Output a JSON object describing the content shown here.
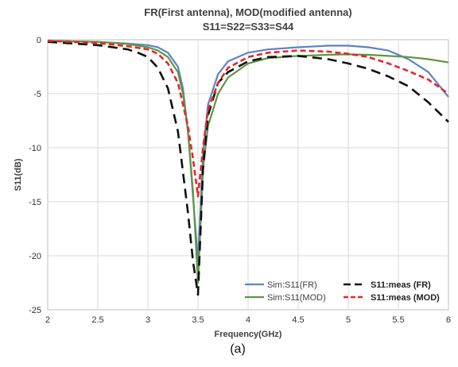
{
  "chart_data": {
    "type": "line",
    "title": "FR(First antenna), MOD(modified antenna)",
    "subtitle": "S11=S22=S33=S44",
    "xlabel": "Frequency(GHz)",
    "ylabel": "S11(dB)",
    "xlim": [
      2,
      6
    ],
    "ylim": [
      -25,
      0
    ],
    "xticks": [
      "2",
      "2.5",
      "3",
      "3.5",
      "4",
      "4.5",
      "5",
      "5.5",
      "6"
    ],
    "yticks": [
      "0",
      "-5",
      "-10",
      "-15",
      "-20",
      "-25"
    ],
    "grid": true,
    "legend_position": "bottom-right",
    "caption": "(a)",
    "series": [
      {
        "name": "Sim:S11(FR)",
        "color": "#5b84c4",
        "style": "solid",
        "x": [
          2.0,
          2.5,
          2.8,
          3.0,
          3.1,
          3.2,
          3.3,
          3.35,
          3.4,
          3.45,
          3.5,
          3.55,
          3.6,
          3.7,
          3.8,
          4.0,
          4.2,
          4.5,
          4.8,
          5.0,
          5.2,
          5.4,
          5.6,
          5.8,
          6.0
        ],
        "y": [
          -0.1,
          -0.2,
          -0.35,
          -0.5,
          -0.7,
          -1.2,
          -2.5,
          -4.5,
          -8.5,
          -14.5,
          -20.5,
          -10.5,
          -6.0,
          -3.2,
          -2.0,
          -1.2,
          -0.9,
          -0.7,
          -0.55,
          -0.55,
          -0.7,
          -1.0,
          -1.8,
          -3.0,
          -5.3
        ]
      },
      {
        "name": "Sim:S11(MOD)",
        "color": "#5e9642",
        "style": "solid",
        "x": [
          2.0,
          2.5,
          2.8,
          3.0,
          3.1,
          3.2,
          3.3,
          3.35,
          3.4,
          3.45,
          3.5,
          3.55,
          3.6,
          3.7,
          3.8,
          4.0,
          4.2,
          4.5,
          4.8,
          5.0,
          5.2,
          5.4,
          5.6,
          5.8,
          6.0
        ],
        "y": [
          -0.1,
          -0.2,
          -0.4,
          -0.7,
          -1.0,
          -1.6,
          -3.0,
          -5.0,
          -8.5,
          -14.0,
          -22.5,
          -12.0,
          -8.0,
          -5.0,
          -3.5,
          -2.2,
          -1.7,
          -1.5,
          -1.4,
          -1.35,
          -1.4,
          -1.5,
          -1.6,
          -1.8,
          -2.1
        ]
      },
      {
        "name": "S11:meas (FR)",
        "color": "#111111",
        "style": "dashed",
        "x": [
          2.0,
          2.5,
          2.8,
          2.9,
          3.0,
          3.1,
          3.2,
          3.3,
          3.4,
          3.45,
          3.5,
          3.55,
          3.6,
          3.7,
          3.8,
          4.0,
          4.2,
          4.5,
          4.8,
          5.0,
          5.2,
          5.4,
          5.6,
          5.8,
          6.0
        ],
        "y": [
          -0.2,
          -0.5,
          -0.9,
          -1.2,
          -1.6,
          -2.6,
          -4.5,
          -8.5,
          -16.0,
          -20.5,
          -23.6,
          -12.0,
          -7.0,
          -4.0,
          -3.0,
          -2.0,
          -1.6,
          -1.5,
          -1.8,
          -2.2,
          -2.7,
          -3.4,
          -4.3,
          -5.8,
          -7.6
        ]
      },
      {
        "name": "S11:meas (MOD)",
        "color": "#e8262b",
        "style": "dashed",
        "x": [
          2.0,
          2.5,
          2.8,
          3.0,
          3.1,
          3.2,
          3.3,
          3.4,
          3.45,
          3.5,
          3.55,
          3.6,
          3.7,
          3.8,
          4.0,
          4.2,
          4.5,
          4.8,
          5.0,
          5.2,
          5.4,
          5.6,
          5.8,
          6.0
        ],
        "y": [
          -0.1,
          -0.3,
          -0.6,
          -0.9,
          -1.3,
          -2.2,
          -4.0,
          -8.0,
          -11.0,
          -14.5,
          -10.0,
          -6.5,
          -4.0,
          -2.6,
          -1.6,
          -1.2,
          -1.0,
          -1.1,
          -1.3,
          -1.6,
          -2.2,
          -2.9,
          -3.7,
          -5.0
        ]
      }
    ],
    "legend": [
      {
        "label": "Sim:S11(FR)",
        "color": "#5b84c4",
        "style": "solid"
      },
      {
        "label": "S11:meas (FR)",
        "color": "#111111",
        "style": "dashed"
      },
      {
        "label": "Sim:S11(MOD)",
        "color": "#5e9642",
        "style": "solid"
      },
      {
        "label": "S11:meas (MOD)",
        "color": "#e8262b",
        "style": "dashed"
      }
    ]
  }
}
